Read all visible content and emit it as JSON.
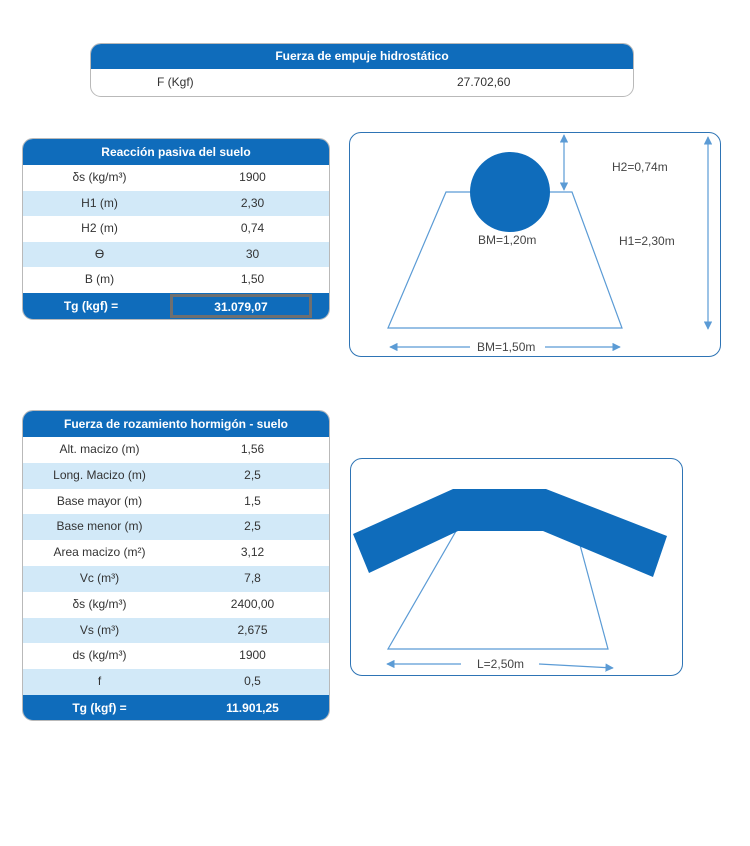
{
  "hydro": {
    "title": "Fuerza de empuje hidrostático",
    "label": "F (Kgf)",
    "value": "27.702,60"
  },
  "reaction": {
    "title": "Reacción pasiva del suelo",
    "rows": [
      {
        "label": "δs (kg/m³)",
        "value": "1900"
      },
      {
        "label": "H1 (m)",
        "value": "2,30"
      },
      {
        "label": "H2 (m)",
        "value": "0,74"
      },
      {
        "label": "ϴ",
        "value": "30"
      },
      {
        "label": "B (m)",
        "value": "1,50"
      }
    ],
    "total_label": "Tg (kgf) =",
    "total_value": "31.079,07"
  },
  "friction": {
    "title": "Fuerza de rozamiento hormigón - suelo",
    "rows": [
      {
        "label": "Alt. macizo (m)",
        "value": "1,56"
      },
      {
        "label": "Long. Macizo (m)",
        "value": "2,5"
      },
      {
        "label": "Base mayor (m)",
        "value": "1,5"
      },
      {
        "label": "Base menor (m)",
        "value": "2,5"
      },
      {
        "label": "Area macizo (m²)",
        "value": "3,12"
      },
      {
        "label": "Vc (m³)",
        "value": "7,8"
      },
      {
        "label": "δs (kg/m³)",
        "value": "2400,00"
      },
      {
        "label": "Vs (m³)",
        "value": "2,675"
      },
      {
        "label": "ds (kg/m³)",
        "value": "1900"
      },
      {
        "label": "f",
        "value": "0,5"
      }
    ],
    "total_label": "Tg (kgf) =",
    "total_value": "11.901,25"
  },
  "diagram1": {
    "h2": "H2=0,74m",
    "h1": "H1=2,30m",
    "bm_top": "BM=1,20m",
    "bm_bottom": "BM=1,50m"
  },
  "diagram2": {
    "length": "L=2,50m"
  },
  "colors": {
    "header_blue": "#0f6cbb",
    "row_alt": "#d2e9f8",
    "diagram_line": "#5b9bd5"
  }
}
